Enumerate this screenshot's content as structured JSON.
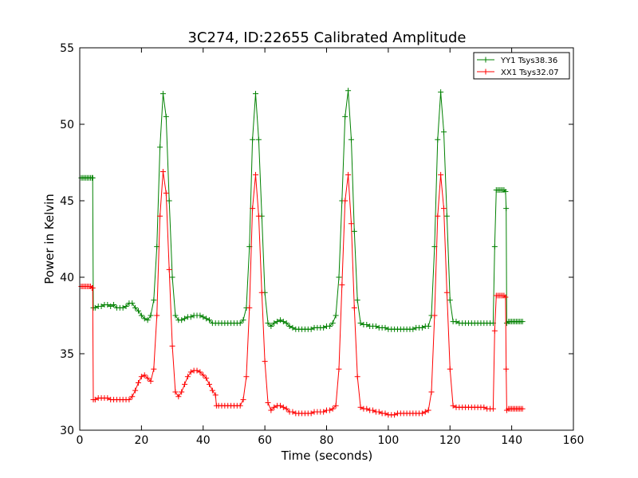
{
  "chart_data": {
    "type": "line",
    "title": "3C274, ID:22655 Calibrated Amplitude",
    "xlabel": "Time (seconds)",
    "ylabel": "Power in Kelvin",
    "xlim": [
      0,
      160
    ],
    "ylim": [
      30,
      55
    ],
    "xticks": [
      0,
      20,
      40,
      60,
      80,
      100,
      120,
      140,
      160
    ],
    "yticks": [
      30,
      35,
      40,
      45,
      50,
      55
    ],
    "grid": false,
    "legend_position": "top-right",
    "marker": "+",
    "series": [
      {
        "name": "YY1 Tsys38.36",
        "color": "#008000",
        "points": [
          [
            0.5,
            46.5
          ],
          [
            1,
            46.5
          ],
          [
            1.5,
            46.5
          ],
          [
            2,
            46.5
          ],
          [
            2.5,
            46.5
          ],
          [
            3,
            46.5
          ],
          [
            3.5,
            46.5
          ],
          [
            4,
            46.5
          ],
          [
            4.2,
            46.5
          ],
          [
            4.4,
            38.0
          ],
          [
            5,
            38.0
          ],
          [
            6,
            38.1
          ],
          [
            7,
            38.1
          ],
          [
            8,
            38.2
          ],
          [
            9,
            38.2
          ],
          [
            10,
            38.1
          ],
          [
            11,
            38.2
          ],
          [
            12,
            38.0
          ],
          [
            13,
            38.0
          ],
          [
            14,
            38.0
          ],
          [
            15,
            38.1
          ],
          [
            16,
            38.3
          ],
          [
            17,
            38.3
          ],
          [
            18,
            38.0
          ],
          [
            19,
            37.8
          ],
          [
            20,
            37.5
          ],
          [
            21,
            37.3
          ],
          [
            22,
            37.2
          ],
          [
            23,
            37.5
          ],
          [
            24,
            38.5
          ],
          [
            25,
            42.0
          ],
          [
            26,
            48.5
          ],
          [
            27,
            52.0
          ],
          [
            28,
            50.5
          ],
          [
            29,
            45.0
          ],
          [
            30,
            40.0
          ],
          [
            31,
            37.5
          ],
          [
            32,
            37.2
          ],
          [
            33,
            37.2
          ],
          [
            34,
            37.3
          ],
          [
            35,
            37.4
          ],
          [
            36,
            37.4
          ],
          [
            37,
            37.5
          ],
          [
            38,
            37.5
          ],
          [
            39,
            37.5
          ],
          [
            40,
            37.4
          ],
          [
            41,
            37.3
          ],
          [
            42,
            37.2
          ],
          [
            43,
            37.0
          ],
          [
            44,
            37.0
          ],
          [
            45,
            37.0
          ],
          [
            46,
            37.0
          ],
          [
            47,
            37.0
          ],
          [
            48,
            37.0
          ],
          [
            49,
            37.0
          ],
          [
            50,
            37.0
          ],
          [
            51,
            37.0
          ],
          [
            52,
            37.0
          ],
          [
            53,
            37.2
          ],
          [
            54,
            38.0
          ],
          [
            55,
            42.0
          ],
          [
            56,
            49.0
          ],
          [
            57,
            52.0
          ],
          [
            58,
            49.0
          ],
          [
            59,
            44.0
          ],
          [
            60,
            39.0
          ],
          [
            61,
            37.0
          ],
          [
            62,
            36.8
          ],
          [
            63,
            37.0
          ],
          [
            64,
            37.1
          ],
          [
            65,
            37.2
          ],
          [
            66,
            37.1
          ],
          [
            67,
            37.0
          ],
          [
            68,
            36.8
          ],
          [
            69,
            36.7
          ],
          [
            70,
            36.6
          ],
          [
            71,
            36.6
          ],
          [
            72,
            36.6
          ],
          [
            73,
            36.6
          ],
          [
            74,
            36.6
          ],
          [
            75,
            36.6
          ],
          [
            76,
            36.7
          ],
          [
            77,
            36.7
          ],
          [
            78,
            36.7
          ],
          [
            79,
            36.7
          ],
          [
            80,
            36.8
          ],
          [
            81,
            36.8
          ],
          [
            82,
            37.0
          ],
          [
            83,
            37.5
          ],
          [
            84,
            40.0
          ],
          [
            85,
            45.0
          ],
          [
            86,
            50.5
          ],
          [
            87,
            52.2
          ],
          [
            88,
            49.0
          ],
          [
            89,
            43.0
          ],
          [
            90,
            38.5
          ],
          [
            91,
            37.0
          ],
          [
            92,
            36.9
          ],
          [
            93,
            36.9
          ],
          [
            94,
            36.8
          ],
          [
            95,
            36.8
          ],
          [
            96,
            36.8
          ],
          [
            97,
            36.7
          ],
          [
            98,
            36.7
          ],
          [
            99,
            36.7
          ],
          [
            100,
            36.6
          ],
          [
            101,
            36.6
          ],
          [
            102,
            36.6
          ],
          [
            103,
            36.6
          ],
          [
            104,
            36.6
          ],
          [
            105,
            36.6
          ],
          [
            106,
            36.6
          ],
          [
            107,
            36.6
          ],
          [
            108,
            36.6
          ],
          [
            109,
            36.7
          ],
          [
            110,
            36.7
          ],
          [
            111,
            36.7
          ],
          [
            112,
            36.8
          ],
          [
            113,
            36.8
          ],
          [
            114,
            37.5
          ],
          [
            115,
            42.0
          ],
          [
            116,
            49.0
          ],
          [
            117,
            52.1
          ],
          [
            118,
            49.5
          ],
          [
            119,
            44.0
          ],
          [
            120,
            38.5
          ],
          [
            121,
            37.1
          ],
          [
            122,
            37.1
          ],
          [
            123,
            37.0
          ],
          [
            124,
            37.0
          ],
          [
            125,
            37.0
          ],
          [
            126,
            37.0
          ],
          [
            127,
            37.0
          ],
          [
            128,
            37.0
          ],
          [
            129,
            37.0
          ],
          [
            130,
            37.0
          ],
          [
            131,
            37.0
          ],
          [
            132,
            37.0
          ],
          [
            133,
            37.0
          ],
          [
            134,
            37.0
          ],
          [
            134.5,
            42.0
          ],
          [
            135,
            45.7
          ],
          [
            135.5,
            45.7
          ],
          [
            136,
            45.7
          ],
          [
            136.5,
            45.7
          ],
          [
            137,
            45.7
          ],
          [
            137.5,
            45.7
          ],
          [
            138,
            45.6
          ],
          [
            138.2,
            44.5
          ],
          [
            138.4,
            37.0
          ],
          [
            139,
            37.1
          ],
          [
            139.5,
            37.1
          ],
          [
            140,
            37.1
          ],
          [
            140.5,
            37.1
          ],
          [
            141,
            37.1
          ],
          [
            141.5,
            37.1
          ],
          [
            142,
            37.1
          ],
          [
            142.5,
            37.1
          ],
          [
            143,
            37.1
          ],
          [
            143.5,
            37.1
          ]
        ]
      },
      {
        "name": "XX1 Tsys32.07",
        "color": "#ff0000",
        "points": [
          [
            0.5,
            39.4
          ],
          [
            1,
            39.4
          ],
          [
            1.5,
            39.4
          ],
          [
            2,
            39.4
          ],
          [
            2.5,
            39.4
          ],
          [
            3,
            39.4
          ],
          [
            3.5,
            39.4
          ],
          [
            4,
            39.3
          ],
          [
            4.2,
            39.3
          ],
          [
            4.4,
            32.0
          ],
          [
            5,
            32.0
          ],
          [
            6,
            32.1
          ],
          [
            7,
            32.1
          ],
          [
            8,
            32.1
          ],
          [
            9,
            32.1
          ],
          [
            10,
            32.0
          ],
          [
            11,
            32.0
          ],
          [
            12,
            32.0
          ],
          [
            13,
            32.0
          ],
          [
            14,
            32.0
          ],
          [
            15,
            32.0
          ],
          [
            16,
            32.0
          ],
          [
            17,
            32.2
          ],
          [
            18,
            32.6
          ],
          [
            19,
            33.1
          ],
          [
            20,
            33.5
          ],
          [
            21,
            33.6
          ],
          [
            22,
            33.4
          ],
          [
            23,
            33.2
          ],
          [
            24,
            34.0
          ],
          [
            25,
            37.5
          ],
          [
            26,
            44.0
          ],
          [
            27,
            46.9
          ],
          [
            28,
            45.5
          ],
          [
            29,
            40.5
          ],
          [
            30,
            35.5
          ],
          [
            31,
            32.5
          ],
          [
            32,
            32.2
          ],
          [
            33,
            32.5
          ],
          [
            34,
            33.0
          ],
          [
            35,
            33.5
          ],
          [
            36,
            33.8
          ],
          [
            37,
            33.9
          ],
          [
            38,
            33.9
          ],
          [
            39,
            33.8
          ],
          [
            40,
            33.6
          ],
          [
            41,
            33.4
          ],
          [
            42,
            33.0
          ],
          [
            43,
            32.6
          ],
          [
            44,
            32.3
          ],
          [
            44.3,
            31.6
          ],
          [
            45,
            31.6
          ],
          [
            46,
            31.6
          ],
          [
            47,
            31.6
          ],
          [
            48,
            31.6
          ],
          [
            49,
            31.6
          ],
          [
            50,
            31.6
          ],
          [
            51,
            31.6
          ],
          [
            52,
            31.6
          ],
          [
            53,
            32.0
          ],
          [
            54,
            33.5
          ],
          [
            55,
            38.0
          ],
          [
            56,
            44.5
          ],
          [
            57,
            46.7
          ],
          [
            58,
            44.0
          ],
          [
            59,
            39.0
          ],
          [
            60,
            34.5
          ],
          [
            61,
            31.8
          ],
          [
            62,
            31.3
          ],
          [
            63,
            31.5
          ],
          [
            64,
            31.6
          ],
          [
            65,
            31.6
          ],
          [
            66,
            31.5
          ],
          [
            67,
            31.4
          ],
          [
            68,
            31.2
          ],
          [
            69,
            31.2
          ],
          [
            70,
            31.1
          ],
          [
            71,
            31.1
          ],
          [
            72,
            31.1
          ],
          [
            73,
            31.1
          ],
          [
            74,
            31.1
          ],
          [
            75,
            31.1
          ],
          [
            76,
            31.2
          ],
          [
            77,
            31.2
          ],
          [
            78,
            31.2
          ],
          [
            79,
            31.2
          ],
          [
            80,
            31.3
          ],
          [
            81,
            31.3
          ],
          [
            82,
            31.4
          ],
          [
            83,
            31.6
          ],
          [
            84,
            34.0
          ],
          [
            85,
            39.5
          ],
          [
            86,
            45.0
          ],
          [
            87,
            46.7
          ],
          [
            88,
            43.5
          ],
          [
            89,
            38.0
          ],
          [
            90,
            33.5
          ],
          [
            91,
            31.5
          ],
          [
            92,
            31.4
          ],
          [
            93,
            31.4
          ],
          [
            94,
            31.3
          ],
          [
            95,
            31.3
          ],
          [
            96,
            31.2
          ],
          [
            97,
            31.2
          ],
          [
            98,
            31.1
          ],
          [
            99,
            31.1
          ],
          [
            100,
            31.0
          ],
          [
            101,
            31.0
          ],
          [
            102,
            31.0
          ],
          [
            103,
            31.1
          ],
          [
            104,
            31.1
          ],
          [
            105,
            31.1
          ],
          [
            106,
            31.1
          ],
          [
            107,
            31.1
          ],
          [
            108,
            31.1
          ],
          [
            109,
            31.1
          ],
          [
            110,
            31.1
          ],
          [
            111,
            31.1
          ],
          [
            112,
            31.2
          ],
          [
            113,
            31.3
          ],
          [
            114,
            32.5
          ],
          [
            115,
            37.5
          ],
          [
            116,
            44.0
          ],
          [
            117,
            46.7
          ],
          [
            118,
            44.5
          ],
          [
            119,
            39.0
          ],
          [
            120,
            34.0
          ],
          [
            121,
            31.6
          ],
          [
            122,
            31.5
          ],
          [
            123,
            31.5
          ],
          [
            124,
            31.5
          ],
          [
            125,
            31.5
          ],
          [
            126,
            31.5
          ],
          [
            127,
            31.5
          ],
          [
            128,
            31.5
          ],
          [
            129,
            31.5
          ],
          [
            130,
            31.5
          ],
          [
            131,
            31.5
          ],
          [
            132,
            31.4
          ],
          [
            133,
            31.4
          ],
          [
            134,
            31.4
          ],
          [
            134.5,
            36.5
          ],
          [
            135,
            38.8
          ],
          [
            135.5,
            38.8
          ],
          [
            136,
            38.8
          ],
          [
            136.5,
            38.8
          ],
          [
            137,
            38.8
          ],
          [
            137.5,
            38.8
          ],
          [
            138,
            38.7
          ],
          [
            138.2,
            34.0
          ],
          [
            138.4,
            31.3
          ],
          [
            139,
            31.4
          ],
          [
            139.5,
            31.4
          ],
          [
            140,
            31.4
          ],
          [
            140.5,
            31.4
          ],
          [
            141,
            31.4
          ],
          [
            141.5,
            31.4
          ],
          [
            142,
            31.4
          ],
          [
            142.5,
            31.4
          ],
          [
            143,
            31.4
          ],
          [
            143.5,
            31.4
          ]
        ]
      }
    ]
  }
}
